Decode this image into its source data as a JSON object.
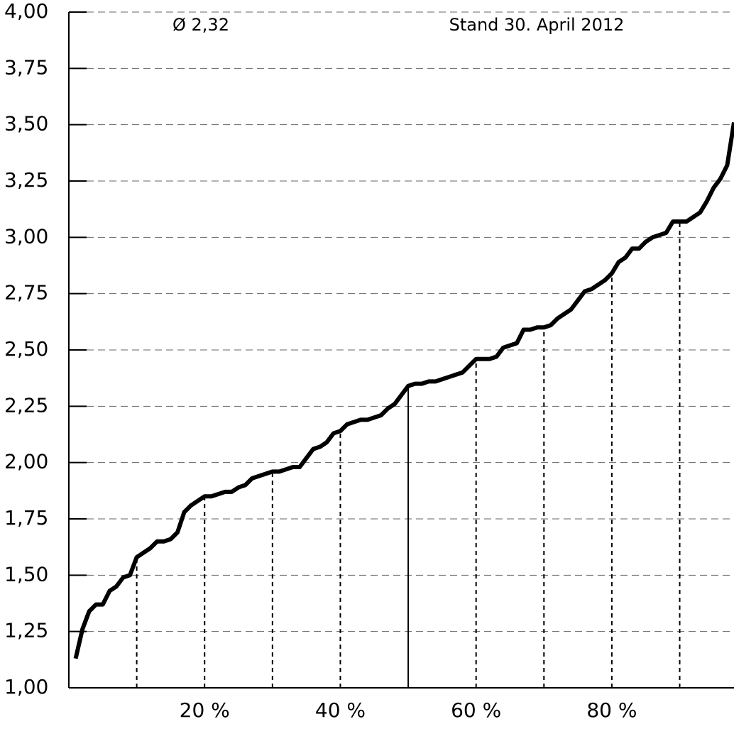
{
  "chart_data": {
    "type": "line",
    "annotations": [
      "Ø 2,32",
      "Stand 30. April 2012"
    ],
    "x": [
      1,
      2,
      3,
      4,
      5,
      6,
      7,
      8,
      9,
      10,
      11,
      12,
      13,
      14,
      15,
      16,
      17,
      18,
      19,
      20,
      21,
      22,
      23,
      24,
      25,
      26,
      27,
      28,
      29,
      30,
      31,
      32,
      33,
      34,
      35,
      36,
      37,
      38,
      39,
      40,
      41,
      42,
      43,
      44,
      45,
      46,
      47,
      48,
      49,
      50,
      51,
      52,
      53,
      54,
      55,
      56,
      57,
      58,
      59,
      60,
      61,
      62,
      63,
      64,
      65,
      66,
      67,
      68,
      69,
      70,
      71,
      72,
      73,
      74,
      75,
      76,
      77,
      78,
      79,
      80,
      81,
      82,
      83,
      84,
      85,
      86,
      87,
      88,
      89,
      90,
      91,
      92,
      93,
      94,
      95,
      96,
      97,
      98
    ],
    "values": [
      1.13,
      1.26,
      1.34,
      1.37,
      1.37,
      1.43,
      1.45,
      1.49,
      1.5,
      1.58,
      1.6,
      1.62,
      1.65,
      1.65,
      1.66,
      1.69,
      1.78,
      1.81,
      1.83,
      1.85,
      1.85,
      1.86,
      1.87,
      1.87,
      1.89,
      1.9,
      1.93,
      1.94,
      1.95,
      1.96,
      1.96,
      1.97,
      1.98,
      1.98,
      2.02,
      2.06,
      2.07,
      2.09,
      2.13,
      2.14,
      2.17,
      2.18,
      2.19,
      2.19,
      2.2,
      2.21,
      2.24,
      2.26,
      2.3,
      2.34,
      2.35,
      2.35,
      2.36,
      2.36,
      2.37,
      2.38,
      2.39,
      2.4,
      2.43,
      2.46,
      2.46,
      2.46,
      2.47,
      2.51,
      2.52,
      2.53,
      2.59,
      2.59,
      2.6,
      2.6,
      2.61,
      2.64,
      2.66,
      2.68,
      2.72,
      2.76,
      2.77,
      2.79,
      2.81,
      2.84,
      2.89,
      2.91,
      2.95,
      2.95,
      2.98,
      3.0,
      3.01,
      3.02,
      3.07,
      3.07,
      3.07,
      3.09,
      3.11,
      3.16,
      3.22,
      3.26,
      3.32,
      3.51
    ],
    "color": "#000000",
    "xlim": [
      0,
      98
    ],
    "ylim": [
      1,
      4
    ],
    "xticks": [
      {
        "value": 20,
        "label": "20 %"
      },
      {
        "value": 40,
        "label": "40 %"
      },
      {
        "value": 60,
        "label": "60 %"
      },
      {
        "value": 80,
        "label": "80 %"
      }
    ],
    "yticks": [
      {
        "value": 1,
        "label": "1,00"
      },
      {
        "value": 1.25,
        "label": "1,25"
      },
      {
        "value": 1.5,
        "label": "1,50"
      },
      {
        "value": 1.75,
        "label": "1,75"
      },
      {
        "value": 2,
        "label": "2,00"
      },
      {
        "value": 2.25,
        "label": "2,25"
      },
      {
        "value": 2.5,
        "label": "2,50"
      },
      {
        "value": 2.75,
        "label": "2,75"
      },
      {
        "value": 3,
        "label": "3,00"
      },
      {
        "value": 3.25,
        "label": "3,25"
      },
      {
        "value": 3.5,
        "label": "3,50"
      },
      {
        "value": 3.75,
        "label": "3,75"
      },
      {
        "value": 4,
        "label": "4,00"
      }
    ],
    "vlines": [
      10,
      20,
      30,
      40,
      50,
      60,
      70,
      80,
      90
    ],
    "solid_vline": 50,
    "grid": true
  }
}
